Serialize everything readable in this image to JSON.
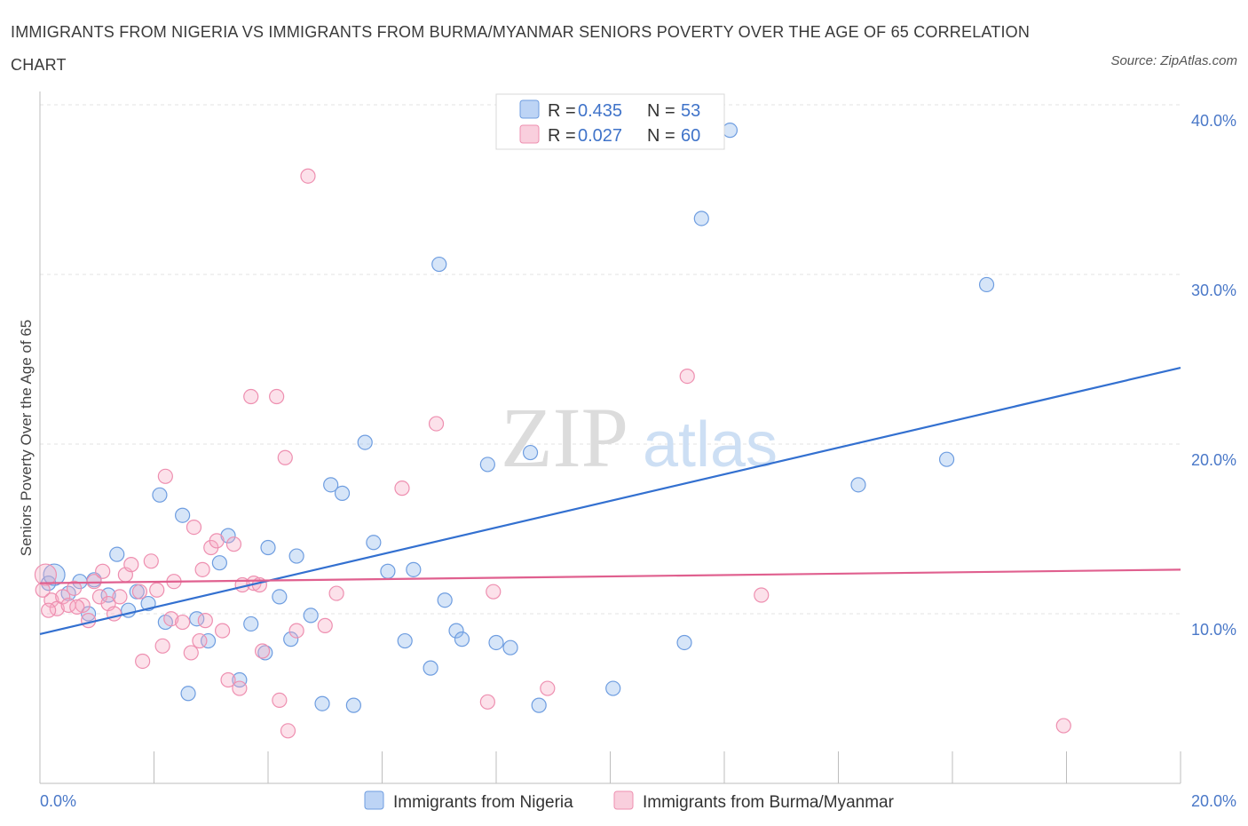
{
  "title": "IMMIGRANTS FROM NIGERIA VS IMMIGRANTS FROM BURMA/MYANMAR SENIORS POVERTY OVER THE AGE OF 65 CORRELATION CHART",
  "source": "Source: ZipAtlas.com",
  "watermark": {
    "zip": "ZIP",
    "atlas": "atlas"
  },
  "chart_data": {
    "type": "scatter",
    "title": "IMMIGRANTS FROM NIGERIA VS IMMIGRANTS FROM BURMA/MYANMAR SENIORS POVERTY OVER THE AGE OF 65 CORRELATION CHART",
    "xlabel": "",
    "ylabel": "Seniors Poverty Over the Age of 65",
    "xlim": [
      0,
      20
    ],
    "ylim": [
      0,
      40
    ],
    "x_tick_labels": [
      "0.0%",
      "20.0%"
    ],
    "y_ticks": [
      10,
      20,
      30,
      40
    ],
    "y_tick_labels": [
      "10.0%",
      "20.0%",
      "30.0%",
      "40.0%"
    ],
    "grid": true,
    "legend": [
      {
        "r_label": "R =",
        "r": "0.435",
        "n_label": "N =",
        "n": "53"
      },
      {
        "r_label": "R =",
        "r": "0.027",
        "n_label": "N =",
        "n": "60"
      }
    ],
    "series": [
      {
        "name": "Immigrants from Nigeria",
        "color": "#8ab4ea",
        "stroke": "#6e9de0",
        "trend_color": "#3370d0",
        "trend": [
          [
            0,
            8.8
          ],
          [
            20,
            24.5
          ]
        ],
        "points": [
          [
            0.15,
            11.8
          ],
          [
            0.25,
            12.3
          ],
          [
            0.5,
            11.2
          ],
          [
            0.7,
            11.9
          ],
          [
            0.85,
            10.0
          ],
          [
            0.95,
            12.0
          ],
          [
            1.2,
            11.1
          ],
          [
            1.35,
            13.5
          ],
          [
            1.55,
            10.2
          ],
          [
            1.7,
            11.3
          ],
          [
            1.9,
            10.6
          ],
          [
            2.1,
            17.0
          ],
          [
            2.2,
            9.5
          ],
          [
            2.5,
            15.8
          ],
          [
            2.6,
            5.3
          ],
          [
            2.75,
            9.7
          ],
          [
            2.95,
            8.4
          ],
          [
            3.15,
            13.0
          ],
          [
            3.3,
            14.6
          ],
          [
            3.5,
            6.1
          ],
          [
            3.7,
            9.4
          ],
          [
            3.95,
            7.7
          ],
          [
            4.0,
            13.9
          ],
          [
            4.2,
            11.0
          ],
          [
            4.4,
            8.5
          ],
          [
            4.5,
            13.4
          ],
          [
            4.75,
            9.9
          ],
          [
            4.95,
            4.7
          ],
          [
            5.1,
            17.6
          ],
          [
            5.3,
            17.1
          ],
          [
            5.5,
            4.6
          ],
          [
            5.7,
            20.1
          ],
          [
            5.85,
            14.2
          ],
          [
            6.1,
            12.5
          ],
          [
            6.4,
            8.4
          ],
          [
            6.55,
            12.6
          ],
          [
            6.85,
            6.8
          ],
          [
            7.0,
            30.6
          ],
          [
            7.1,
            10.8
          ],
          [
            7.3,
            9.0
          ],
          [
            7.4,
            8.5
          ],
          [
            7.85,
            18.8
          ],
          [
            8.0,
            8.3
          ],
          [
            8.25,
            8.0
          ],
          [
            8.6,
            19.5
          ],
          [
            8.75,
            4.6
          ],
          [
            10.05,
            5.6
          ],
          [
            11.3,
            8.3
          ],
          [
            11.6,
            33.3
          ],
          [
            12.1,
            38.5
          ],
          [
            14.35,
            17.6
          ],
          [
            15.9,
            19.1
          ],
          [
            16.6,
            29.4
          ]
        ]
      },
      {
        "name": "Immigrants from Burma/Myanmar",
        "color": "#f5a9c4",
        "stroke": "#ee8fb0",
        "trend_color": "#e0608f",
        "trend": [
          [
            0,
            11.8
          ],
          [
            20,
            12.6
          ]
        ],
        "points": [
          [
            0.1,
            12.3
          ],
          [
            0.2,
            10.8
          ],
          [
            0.3,
            10.3
          ],
          [
            0.4,
            11.0
          ],
          [
            0.5,
            10.5
          ],
          [
            0.6,
            11.5
          ],
          [
            0.75,
            10.5
          ],
          [
            0.85,
            9.6
          ],
          [
            0.95,
            11.9
          ],
          [
            1.05,
            11.0
          ],
          [
            1.1,
            12.5
          ],
          [
            1.2,
            10.6
          ],
          [
            1.3,
            10.0
          ],
          [
            1.4,
            11.0
          ],
          [
            1.5,
            12.3
          ],
          [
            1.6,
            12.9
          ],
          [
            1.75,
            11.3
          ],
          [
            1.8,
            7.2
          ],
          [
            1.95,
            13.1
          ],
          [
            2.05,
            11.4
          ],
          [
            2.15,
            8.1
          ],
          [
            2.2,
            18.1
          ],
          [
            2.3,
            9.7
          ],
          [
            2.35,
            11.9
          ],
          [
            2.5,
            9.5
          ],
          [
            2.65,
            7.7
          ],
          [
            2.7,
            15.1
          ],
          [
            2.8,
            8.4
          ],
          [
            2.85,
            12.6
          ],
          [
            2.9,
            9.6
          ],
          [
            3.0,
            13.9
          ],
          [
            3.1,
            14.3
          ],
          [
            3.2,
            9.0
          ],
          [
            3.3,
            6.1
          ],
          [
            3.4,
            14.1
          ],
          [
            3.5,
            5.6
          ],
          [
            3.55,
            11.7
          ],
          [
            3.7,
            22.8
          ],
          [
            3.75,
            11.8
          ],
          [
            3.85,
            11.7
          ],
          [
            3.9,
            7.8
          ],
          [
            4.15,
            22.8
          ],
          [
            4.2,
            4.9
          ],
          [
            4.3,
            19.2
          ],
          [
            4.35,
            3.1
          ],
          [
            4.5,
            9.0
          ],
          [
            4.7,
            35.8
          ],
          [
            5.0,
            9.3
          ],
          [
            5.2,
            11.2
          ],
          [
            6.35,
            17.4
          ],
          [
            6.95,
            21.2
          ],
          [
            7.85,
            4.8
          ],
          [
            7.95,
            11.3
          ],
          [
            8.9,
            5.6
          ],
          [
            11.35,
            24.0
          ],
          [
            12.65,
            11.1
          ],
          [
            17.95,
            3.4
          ],
          [
            0.05,
            11.4
          ],
          [
            0.15,
            10.2
          ],
          [
            0.65,
            10.4
          ]
        ]
      }
    ]
  }
}
